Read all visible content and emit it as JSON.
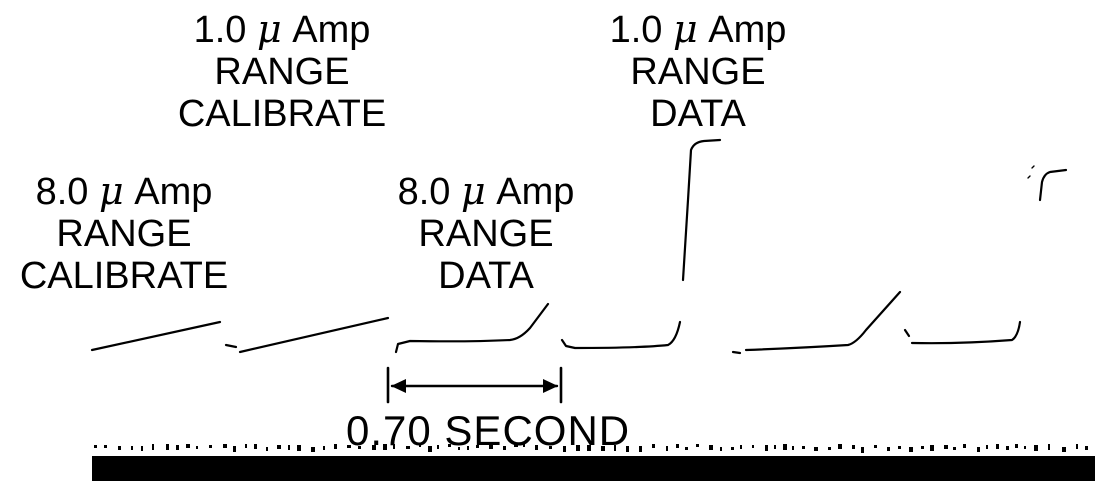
{
  "labels": [
    {
      "id": "1ua-cal",
      "line1_num": "1.0",
      "line1_mu": "μ",
      "line1_unit": "Amp",
      "line2": "RANGE",
      "line3": "CALIBRATE"
    },
    {
      "id": "1ua-data",
      "line1_num": "1.0",
      "line1_mu": "μ",
      "line1_unit": "Amp",
      "line2": "RANGE",
      "line3": "DATA"
    },
    {
      "id": "8ua-cal",
      "line1_num": "8.0",
      "line1_mu": "μ",
      "line1_unit": "Amp",
      "line2": "RANGE",
      "line3": "CALIBRATE"
    },
    {
      "id": "8ua-data",
      "line1_num": "8.0",
      "line1_mu": "μ",
      "line1_unit": "Amp",
      "line2": "RANGE",
      "line3": "DATA"
    }
  ],
  "duration_label": "0.70 SECOND",
  "colors": {
    "ink": "#000000",
    "background": "#ffffff"
  }
}
